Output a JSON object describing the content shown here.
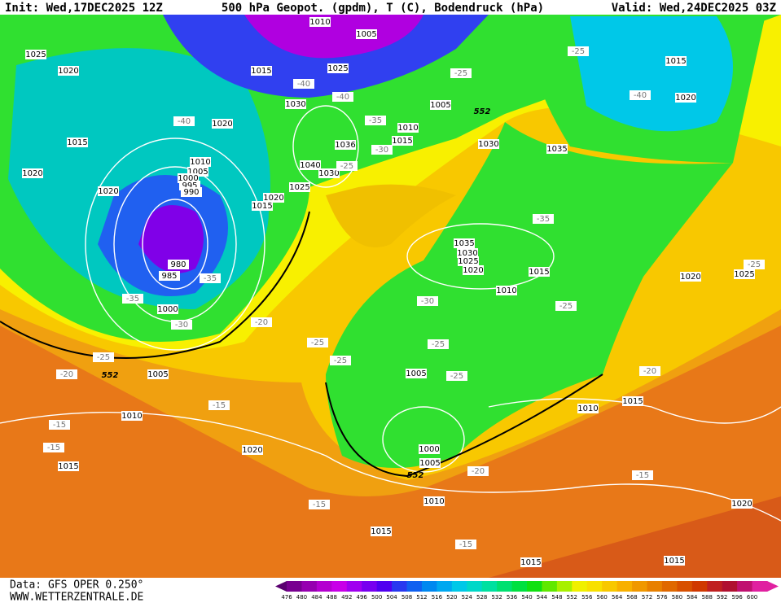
{
  "header": {
    "init": "Init: Wed,17DEC2025 12Z",
    "title": "500 hPa Geopot. (gpdm), T (C), Bodendruck (hPa)",
    "valid": "Valid: Wed,24DEC2025 03Z"
  },
  "footer": {
    "data": "Data: GFS OPER 0.250°",
    "site": "WWW.WETTERZENTRALE.DE"
  },
  "colorbar": {
    "ticks": [
      476,
      480,
      484,
      488,
      492,
      496,
      500,
      504,
      508,
      512,
      516,
      520,
      524,
      528,
      532,
      536,
      540,
      544,
      548,
      552,
      556,
      560,
      564,
      568,
      572,
      576,
      580,
      584,
      588,
      592,
      596,
      600
    ],
    "colors": [
      "#5a0070",
      "#780090",
      "#9600b0",
      "#b400d0",
      "#c800e8",
      "#a000f0",
      "#7800f0",
      "#5000f0",
      "#2838f0",
      "#1060f0",
      "#0088f0",
      "#00a8f0",
      "#00c8e8",
      "#00d8c8",
      "#00e0a0",
      "#00e070",
      "#00e040",
      "#10e010",
      "#60e800",
      "#a8f000",
      "#f0f000",
      "#f8e000",
      "#f8c800",
      "#f8b000",
      "#f09800",
      "#e88000",
      "#e06800",
      "#d85000",
      "#d03800",
      "#c02020",
      "#b01030",
      "#c01070",
      "#e020a0"
    ]
  },
  "map": {
    "isobars": [
      "1025",
      "1020",
      "1015",
      "1020",
      "1020",
      "1010",
      "1005",
      "1000",
      "995",
      "990",
      "980",
      "985",
      "1000",
      "1005",
      "1010",
      "1020",
      "1015",
      "1015",
      "1010",
      "1005",
      "1000",
      "1005",
      "1010",
      "1015",
      "1020",
      "1025",
      "1030",
      "1035",
      "1030",
      "1035",
      "1005",
      "1010",
      "1015",
      "1030",
      "1040",
      "1030",
      "1036",
      "1025",
      "1020",
      "1015",
      "1015",
      "1025",
      "1005",
      "1010",
      "1020",
      "1015",
      "1020",
      "1020",
      "1025",
      "1015",
      "1010",
      "1020",
      "1015",
      "1015"
    ],
    "temperatures": [
      "-40",
      "-35",
      "-35",
      "-30",
      "-20",
      "-25",
      "-20",
      "-15",
      "-15",
      "-15",
      "-25",
      "-25",
      "-30",
      "-25",
      "-25",
      "-20",
      "-15",
      "-15",
      "-15",
      "-25",
      "-35",
      "-25",
      "-25",
      "-40",
      "-35",
      "-30",
      "-25",
      "-40",
      "-40",
      "-20",
      "-25"
    ],
    "geopotential": [
      "552",
      "552",
      "552"
    ]
  }
}
